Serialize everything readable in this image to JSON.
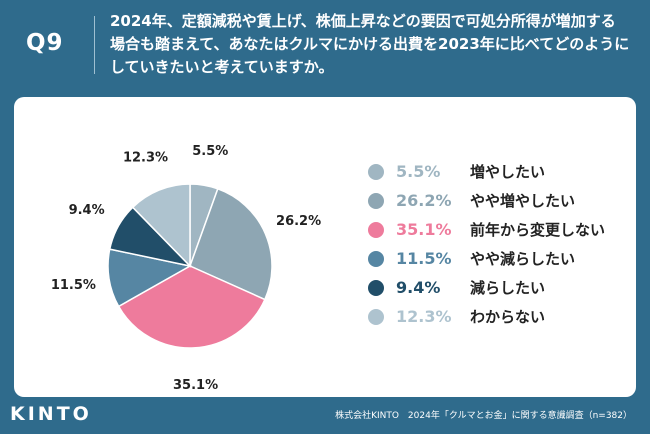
{
  "header": {
    "question_number": "Q9",
    "question_text": "2024年、定額減税や賃上げ、株価上昇などの要因で可処分所得が増加する場合も踏まえて、あなたはクルマにかける出費を2023年に比べてどのようにしていきたいと考えていますか。"
  },
  "chart_data": {
    "type": "pie",
    "title": "",
    "start": "12-o'clock",
    "direction": "clockwise",
    "unit": "%",
    "slices": [
      {
        "label": "増やしたい",
        "value": 5.5,
        "display": "5.5%",
        "color": "#a0b6c2"
      },
      {
        "label": "やや増やしたい",
        "value": 26.2,
        "display": "26.2%",
        "color": "#8ea6b3"
      },
      {
        "label": "前年から変更しない",
        "value": 35.1,
        "display": "35.1%",
        "color": "#ee7b9c"
      },
      {
        "label": "やや減らしたい",
        "value": 11.5,
        "display": "11.5%",
        "color": "#5686a3"
      },
      {
        "label": "減らしたい",
        "value": 9.4,
        "display": "9.4%",
        "color": "#214e69"
      },
      {
        "label": "わからない",
        "value": 12.3,
        "display": "12.3%",
        "color": "#aec3cf"
      }
    ],
    "legend_placement": "right"
  },
  "footer": {
    "logo_text": "KINTO",
    "source": "株式会社KINTO　2024年「クルマとお金」に関する意識調査（n=382）"
  }
}
